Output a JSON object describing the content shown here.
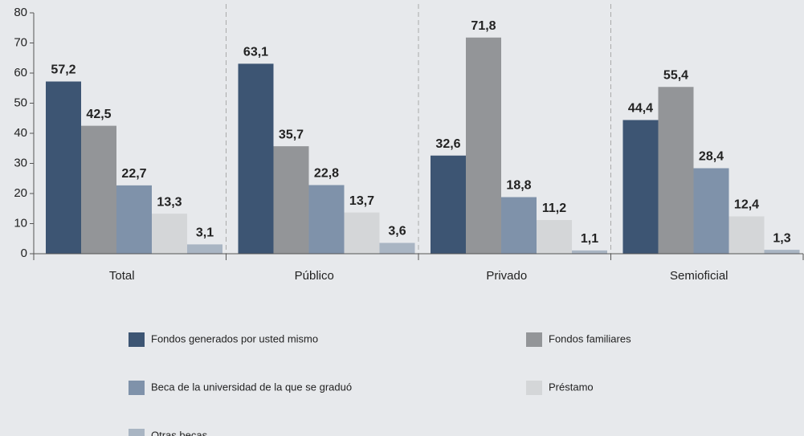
{
  "chart_data": {
    "type": "bar",
    "categories": [
      "Total",
      "Público",
      "Privado",
      "Semioficial"
    ],
    "series": [
      {
        "name": "Fondos generados por usted mismo",
        "color": "#3d5573",
        "values": [
          57.2,
          63.1,
          32.6,
          44.4
        ],
        "value_labels": [
          "57,2",
          "63,1",
          "32,6",
          "44,4"
        ]
      },
      {
        "name": "Fondos familiares",
        "color": "#939598",
        "values": [
          42.5,
          35.7,
          71.8,
          55.4
        ],
        "value_labels": [
          "42,5",
          "35,7",
          "71,8",
          "55,4"
        ]
      },
      {
        "name": "Beca de la universidad de la que se graduó",
        "color": "#7f92aa",
        "values": [
          22.7,
          22.8,
          18.8,
          28.4
        ],
        "value_labels": [
          "22,7",
          "22,8",
          "18,8",
          "28,4"
        ]
      },
      {
        "name": "Préstamo",
        "color": "#d4d6d8",
        "values": [
          13.3,
          13.7,
          11.2,
          12.4
        ],
        "value_labels": [
          "13,3",
          "13,7",
          "11,2",
          "12,4"
        ]
      },
      {
        "name": "Otras becas",
        "color": "#a9b5c3",
        "values": [
          3.1,
          3.6,
          1.1,
          1.3
        ],
        "value_labels": [
          "3,1",
          "3,6",
          "1,1",
          "1,3"
        ]
      }
    ],
    "ylim": [
      0,
      80
    ],
    "yticks": [
      0,
      10,
      20,
      30,
      40,
      50,
      60,
      70,
      80
    ],
    "grid": false
  }
}
